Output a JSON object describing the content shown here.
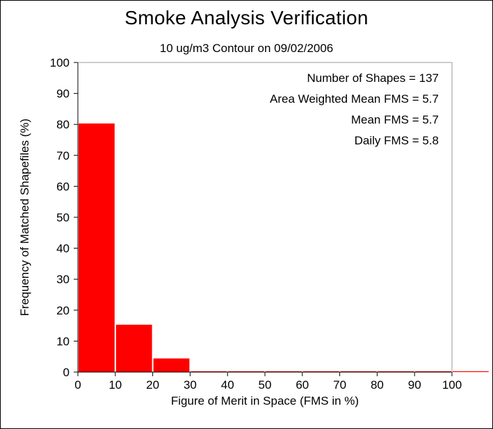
{
  "chart_data": {
    "type": "bar",
    "title": "Smoke Analysis Verification",
    "subtitle": "10 ug/m3 Contour on 09/02/2006",
    "xlabel": "Figure of Merit in Space (FMS in %)",
    "ylabel": "Frequency of Matched Shapefiles (%)",
    "xlim": [
      0,
      100
    ],
    "ylim": [
      0,
      100
    ],
    "xticks": [
      0,
      10,
      20,
      30,
      40,
      50,
      60,
      70,
      80,
      90,
      100
    ],
    "yticks": [
      0,
      10,
      20,
      30,
      40,
      50,
      60,
      70,
      80,
      90,
      100
    ],
    "bin_width": 10,
    "bins": [
      {
        "from": 0,
        "to": 10,
        "value": 80.3
      },
      {
        "from": 10,
        "to": 20,
        "value": 15.3
      },
      {
        "from": 20,
        "to": 30,
        "value": 4.4
      },
      {
        "from": 30,
        "to": 40,
        "value": 0
      },
      {
        "from": 40,
        "to": 50,
        "value": 0
      },
      {
        "from": 50,
        "to": 60,
        "value": 0
      },
      {
        "from": 60,
        "to": 70,
        "value": 0
      },
      {
        "from": 70,
        "to": 80,
        "value": 0
      },
      {
        "from": 80,
        "to": 90,
        "value": 0
      },
      {
        "from": 90,
        "to": 100,
        "value": 0
      },
      {
        "from": 100,
        "to": 110,
        "value": 0
      }
    ],
    "bar_color": "#ff0000",
    "annotations": [
      "Number of Shapes = 137",
      "Area Weighted Mean FMS = 5.7",
      "Mean FMS = 5.7",
      "Daily FMS = 5.8"
    ]
  }
}
